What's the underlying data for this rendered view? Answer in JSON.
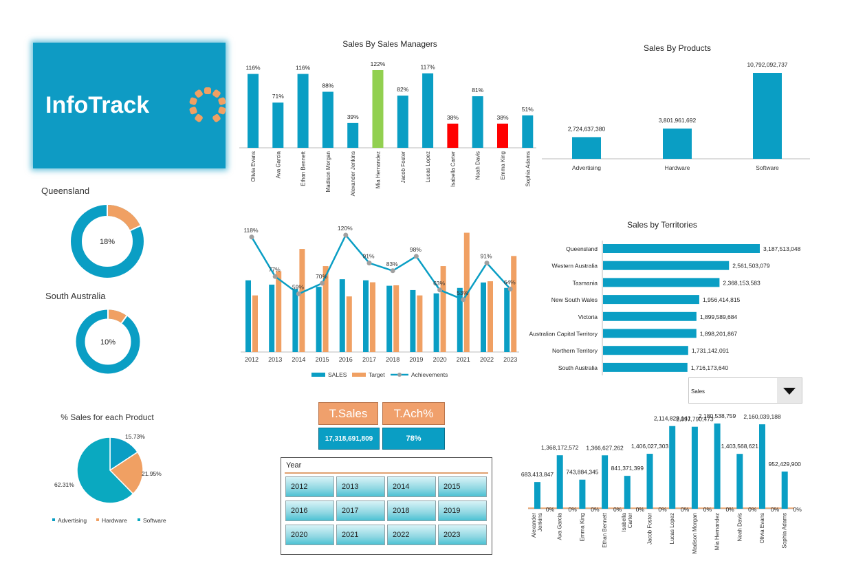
{
  "logo": {
    "text": "InfoTrack",
    "bg": "#0e9bc4",
    "dot_color": "#f0a063"
  },
  "colors": {
    "blue": "#0a9ec4",
    "orange": "#f0a063",
    "green": "#92d050",
    "red": "#ff0000",
    "line_dot": "#a0a0a0"
  },
  "kpis": {
    "sales_label": "T.Sales",
    "ach_label": "T.Ach%",
    "sales_value": "17,318,691,809",
    "ach_value": "78%"
  },
  "slicer": {
    "title": "Year",
    "years": [
      "2012",
      "2013",
      "2014",
      "2015",
      "2016",
      "2017",
      "2018",
      "2019",
      "2020",
      "2021",
      "2022",
      "2023"
    ]
  },
  "dropdown": {
    "value": "Sales",
    "icon": "triangle-down-icon"
  },
  "chart_data": [
    {
      "id": "managers",
      "type": "bar",
      "title": "Sales By Sales Managers",
      "categories": [
        "Olivia Evans",
        "Ava Garcia",
        "Ethan Bennett",
        "Madison Morgan",
        "Alexander Jenkins",
        "Mia Hernandez",
        "Jacob Foster",
        "Lucas Lopez",
        "Isabella Carter",
        "Noah Davis",
        "Emma King",
        "Sophia Adams"
      ],
      "values": [
        116,
        71,
        116,
        88,
        39,
        122,
        82,
        117,
        38,
        81,
        38,
        51
      ],
      "labels": [
        "116%",
        "71%",
        "116%",
        "88%",
        "39%",
        "122%",
        "82%",
        "117%",
        "38%",
        "81%",
        "38%",
        "51%"
      ],
      "highlight": {
        "max": "#92d050",
        "min": "#ff0000"
      },
      "ylim": [
        0,
        130
      ]
    },
    {
      "id": "products",
      "type": "bar",
      "title": "Sales By Products",
      "categories": [
        "Advertising",
        "Hardware",
        "Software"
      ],
      "values": [
        2724637380,
        3801961692,
        10792092737
      ],
      "labels": [
        "2,724,637,380",
        "3,801,961,692",
        "10,792,092,737"
      ]
    },
    {
      "id": "queensland",
      "type": "pie",
      "title": "Queensland",
      "value": 18,
      "label": "18%"
    },
    {
      "id": "south_australia",
      "type": "pie",
      "title": "South Australia",
      "value": 10,
      "label": "10%"
    },
    {
      "id": "yearly",
      "type": "bar",
      "title": "",
      "categories": [
        "2012",
        "2013",
        "2014",
        "2015",
        "2016",
        "2017",
        "2018",
        "2019",
        "2020",
        "2021",
        "2022",
        "2023"
      ],
      "series": [
        {
          "name": "SALES",
          "values": [
            66,
            62,
            58,
            60,
            67,
            66,
            61,
            57,
            54,
            59,
            64,
            59
          ]
        },
        {
          "name": "Target",
          "values": [
            56,
            80,
            102,
            85,
            55,
            69,
            66,
            56,
            85,
            118,
            70,
            95
          ]
        },
        {
          "name": "Achievements",
          "values": [
            118,
            77,
            59,
            70,
            120,
            91,
            83,
            98,
            63,
            53,
            91,
            64
          ]
        }
      ],
      "achievement_labels": [
        "118%",
        "77%",
        "59%",
        "70%",
        "120%",
        "91%",
        "83%",
        "98%",
        "63%",
        "53%",
        "91%",
        "64%"
      ],
      "legend": "bottom"
    },
    {
      "id": "territories",
      "type": "bar",
      "title": "Sales by Territories",
      "categories": [
        "Queensland",
        "Western Australia",
        "Tasmania",
        "New South Wales",
        "Victoria",
        "Australian Capital Territory",
        "Northern Territory",
        "South Australia"
      ],
      "values": [
        3187513048,
        2561503079,
        2368153583,
        1956414815,
        1899589684,
        1898201867,
        1731142091,
        1716173640
      ],
      "labels": [
        "3,187,513,048",
        "2,561,503,079",
        "2,368,153,583",
        "1,956,414,815",
        "1,899,589,684",
        "1,898,201,867",
        "1,731,142,091",
        "1,716,173,640"
      ],
      "orientation": "horizontal"
    },
    {
      "id": "product_pct",
      "type": "pie",
      "title": "% Sales for each Product",
      "categories": [
        "Advertising",
        "Hardware",
        "Software"
      ],
      "values": [
        15.73,
        21.95,
        62.31
      ],
      "labels": [
        "15.73%",
        "21.95%",
        "62.31%"
      ],
      "legend": "bottom"
    },
    {
      "id": "manager_sales",
      "type": "bar",
      "title": "",
      "categories": [
        "Alexander Jenkins",
        "Ava Garcia",
        "Emma King",
        "Ethan Bennett",
        "Isabella Carter",
        "Jacob Foster",
        "Lucas Lopez",
        "Madison Morgan",
        "Mia Hernandez",
        "Noah Davis",
        "Olivia Evans",
        "Sophia Adams"
      ],
      "values": [
        683413847,
        1368172572,
        743884345,
        1366627262,
        841371399,
        1406027303,
        2114828141,
        2097790473,
        2180538759,
        1403568621,
        2160039188,
        952429900
      ],
      "labels": [
        "683,413,847",
        "1,368,172,572",
        "743,884,345",
        "1,366,627,262",
        "841,371,399",
        "1,406,027,303",
        "2,114,828,141",
        "2,097,790,473",
        "2,180,538,759",
        "1,403,568,621",
        "2,160,039,188",
        "952,429,900"
      ],
      "zero_label": "0%"
    }
  ]
}
